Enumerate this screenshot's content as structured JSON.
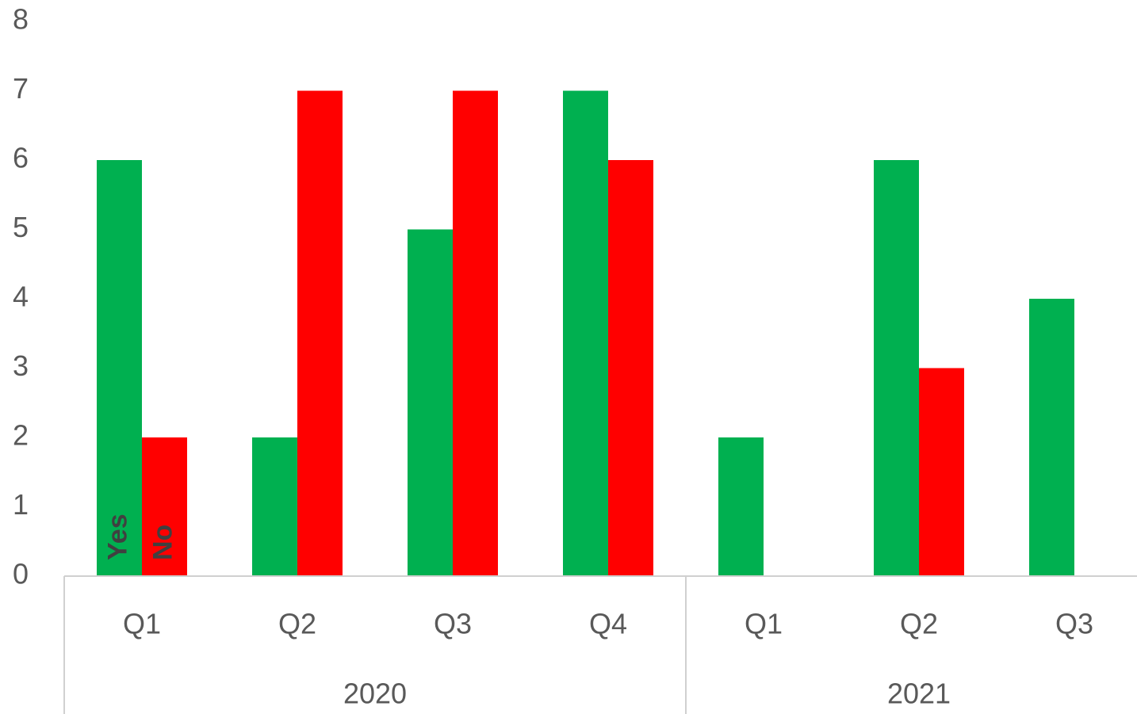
{
  "chart_data": {
    "type": "bar",
    "groups": [
      {
        "name": "2020",
        "categories": [
          "Q1",
          "Q2",
          "Q3",
          "Q4"
        ]
      },
      {
        "name": "2021",
        "categories": [
          "Q1",
          "Q2",
          "Q3"
        ]
      }
    ],
    "series": [
      {
        "name": "Yes",
        "color": "#00b050",
        "values": [
          6,
          2,
          5,
          7,
          2,
          6,
          4
        ]
      },
      {
        "name": "No",
        "color": "#ff0000",
        "values": [
          2,
          7,
          7,
          6,
          0,
          3,
          0
        ]
      }
    ],
    "ylim": [
      0,
      8
    ],
    "yticks": [
      0,
      1,
      2,
      3,
      4,
      5,
      6,
      7,
      8
    ],
    "grid": false
  }
}
